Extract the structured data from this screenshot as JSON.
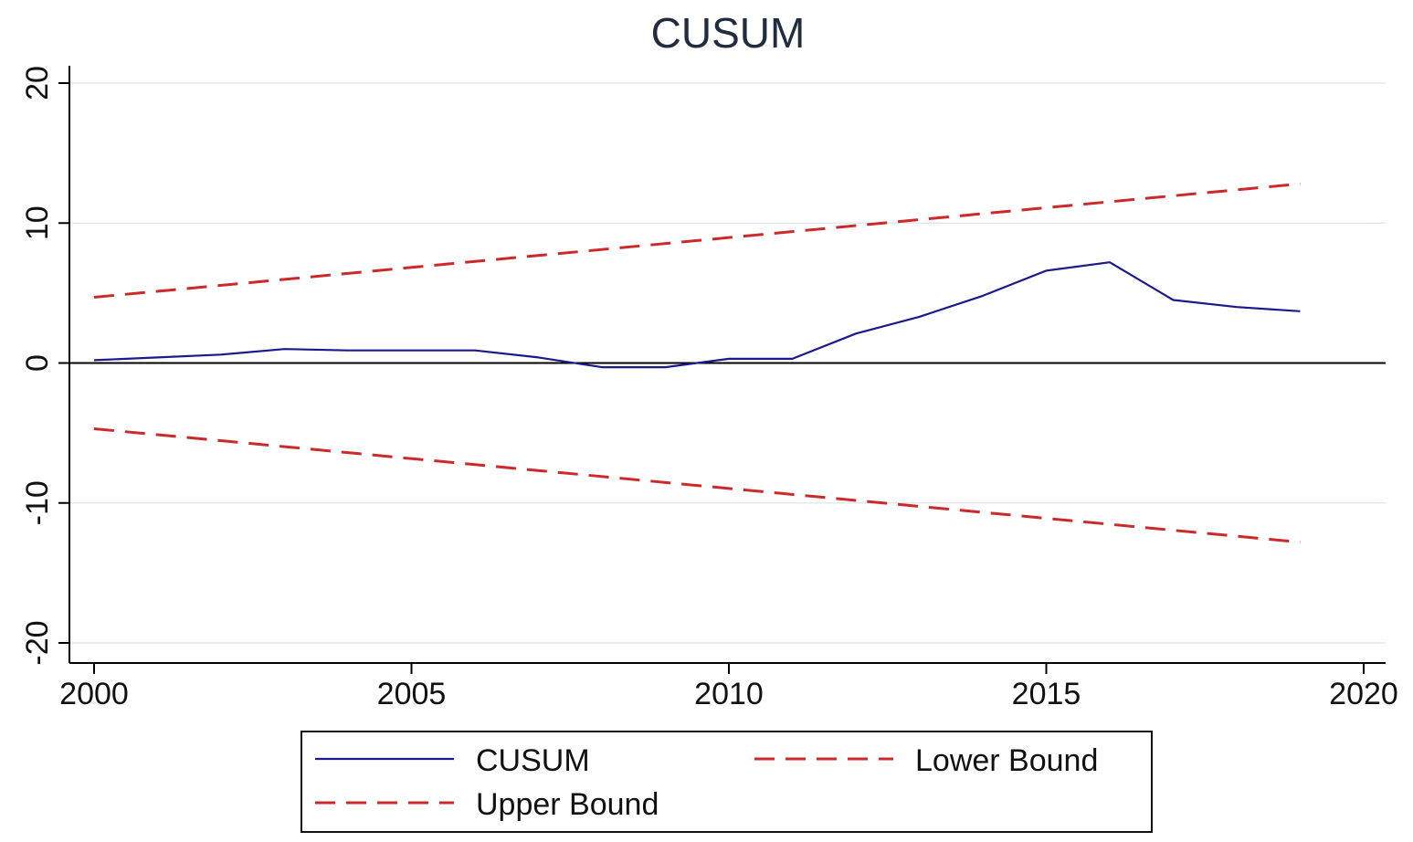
{
  "chart_data": {
    "type": "line",
    "title": "CUSUM",
    "xlabel": "",
    "ylabel": "",
    "xlim": [
      2000,
      2020
    ],
    "ylim": [
      -20,
      20
    ],
    "x_ticks": [
      2000,
      2005,
      2010,
      2015,
      2020
    ],
    "y_ticks": [
      -20,
      -10,
      0,
      10,
      20
    ],
    "grid": true,
    "zero_line": true,
    "legend_position": "bottom",
    "series": [
      {
        "name": "CUSUM",
        "style": "solid",
        "color": "#1a1a8c",
        "x": [
          2000,
          2001,
          2002,
          2003,
          2004,
          2005,
          2006,
          2007,
          2008,
          2009,
          2010,
          2011,
          2012,
          2013,
          2014,
          2015,
          2016,
          2017,
          2018,
          2019
        ],
        "y": [
          0.2,
          0.4,
          0.6,
          1.0,
          0.9,
          0.9,
          0.9,
          0.4,
          -0.3,
          -0.3,
          0.3,
          0.3,
          2.1,
          3.3,
          4.8,
          6.6,
          7.2,
          4.5,
          4.0,
          3.7
        ]
      },
      {
        "name": "Lower Bound",
        "style": "dashed",
        "color": "#cc2a2a",
        "x": [
          2000,
          2019
        ],
        "y": [
          -4.7,
          -12.8
        ]
      },
      {
        "name": "Upper Bound",
        "style": "dashed",
        "color": "#cc2a2a",
        "x": [
          2000,
          2019
        ],
        "y": [
          4.7,
          12.8
        ]
      }
    ],
    "legend": [
      {
        "label": "CUSUM",
        "series": 0
      },
      {
        "label": "Lower Bound",
        "series": 1
      },
      {
        "label": "Upper Bound",
        "series": 2
      }
    ]
  }
}
